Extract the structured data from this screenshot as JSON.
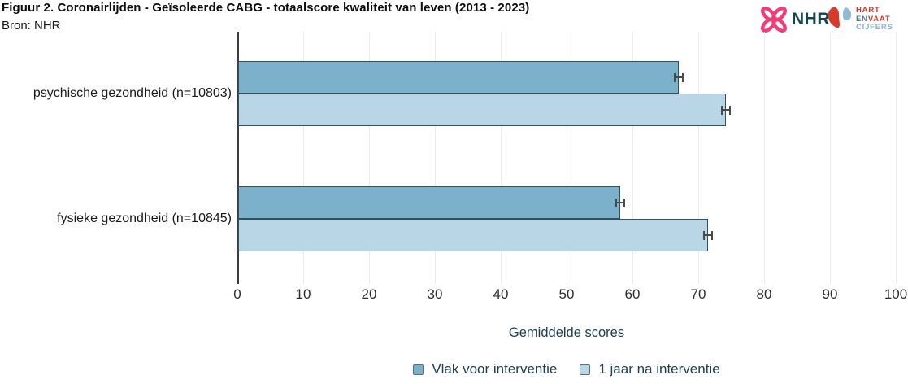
{
  "figure": {
    "title": "Figuur 2. Coronairlijden - Geïsoleerde CABG - totaalscore kwaliteit van leven (2013 - 2023)",
    "source": "Bron: NHR"
  },
  "logos": {
    "nhr_wordmark": "NHR",
    "hev_word_hart": "HART",
    "hev_word_en": "EN",
    "hev_word_vaat": "VAAT",
    "hev_word_cijfers": "CIJFERS",
    "nhr_pink": "#ee3d77",
    "nhr_teal": "#16454f",
    "hev_red": "#d63a2a",
    "hev_blue": "#85b4cb"
  },
  "chart_data": {
    "type": "bar",
    "orientation": "horizontal",
    "title": "Figuur 2. Coronairlijden - Geïsoleerde CABG - totaalscore kwaliteit van leven (2013 - 2023)",
    "categories": [
      "psychische gezondheid (n=10803)",
      "fysieke gezondheid (n=10845)"
    ],
    "series": [
      {
        "name": "Vlak voor interventie",
        "color": "#7cb1cc",
        "values": [
          66.9,
          58.0
        ],
        "errors": [
          0.6,
          0.6
        ]
      },
      {
        "name": "1 jaar na interventie",
        "color": "#b9d6e7",
        "values": [
          74.1,
          71.4
        ],
        "errors": [
          0.6,
          0.6
        ]
      }
    ],
    "xlabel": "Gemiddelde scores",
    "ylabel": "",
    "xlim": [
      0,
      100
    ],
    "xticks": [
      0,
      10,
      20,
      30,
      40,
      50,
      60,
      70,
      80,
      90,
      100
    ],
    "grid": "vertical",
    "legend_position": "bottom",
    "bar_outline_color": "#33505f",
    "error_bar_color": "#4a4a4a"
  }
}
